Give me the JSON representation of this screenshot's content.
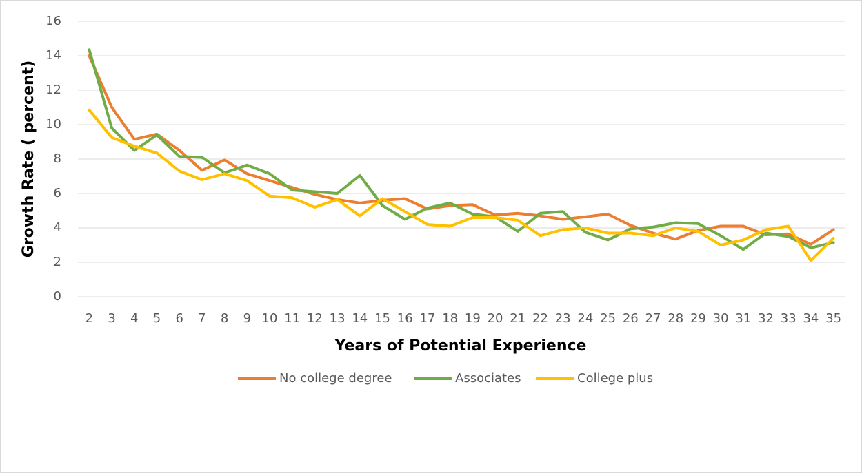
{
  "chart_data": {
    "type": "line",
    "x_label": "Years of Potential Experience",
    "y_label": "Growth Rate ( percent)",
    "categories": [
      "2",
      "3",
      "4",
      "5",
      "6",
      "7",
      "8",
      "9",
      "10",
      "11",
      "12",
      "13",
      "14",
      "15",
      "16",
      "17",
      "18",
      "19",
      "20",
      "21",
      "22",
      "23",
      "24",
      "25",
      "26",
      "27",
      "28",
      "29",
      "30",
      "31",
      "32",
      "33",
      "34",
      "35"
    ],
    "series": [
      {
        "name": "No college degree",
        "color": "#ed7d31",
        "values": [
          14.0,
          11.0,
          9.15,
          9.45,
          8.5,
          7.35,
          7.95,
          7.15,
          6.75,
          6.35,
          5.95,
          5.65,
          5.45,
          5.6,
          5.7,
          5.1,
          5.3,
          5.35,
          4.75,
          4.85,
          4.7,
          4.5,
          4.65,
          4.8,
          4.15,
          3.7,
          3.35,
          3.85,
          4.1,
          4.1,
          3.6,
          3.65,
          3.05,
          3.9
        ]
      },
      {
        "name": "Associates",
        "color": "#70ad47",
        "values": [
          14.35,
          9.8,
          8.5,
          9.4,
          8.15,
          8.1,
          7.2,
          7.65,
          7.15,
          6.2,
          6.1,
          6.0,
          7.05,
          5.3,
          4.5,
          5.15,
          5.45,
          4.8,
          4.65,
          3.8,
          4.85,
          4.95,
          3.75,
          3.3,
          3.95,
          4.05,
          4.3,
          4.25,
          3.55,
          2.75,
          3.7,
          3.5,
          2.85,
          3.15
        ]
      },
      {
        "name": "College plus",
        "color": "#ffc000",
        "values": [
          10.85,
          9.25,
          8.75,
          8.35,
          7.3,
          6.8,
          7.15,
          6.75,
          5.85,
          5.75,
          5.2,
          5.65,
          4.7,
          5.7,
          4.95,
          4.2,
          4.1,
          4.6,
          4.6,
          4.45,
          3.55,
          3.9,
          4.0,
          3.7,
          3.7,
          3.55,
          4.0,
          3.8,
          3.0,
          3.3,
          3.9,
          4.1,
          2.1,
          3.4
        ]
      }
    ],
    "ylim": [
      0,
      16
    ],
    "yticks": [
      0,
      2,
      4,
      6,
      8,
      10,
      12,
      14,
      16
    ],
    "grid": true,
    "legend": "bottom"
  }
}
